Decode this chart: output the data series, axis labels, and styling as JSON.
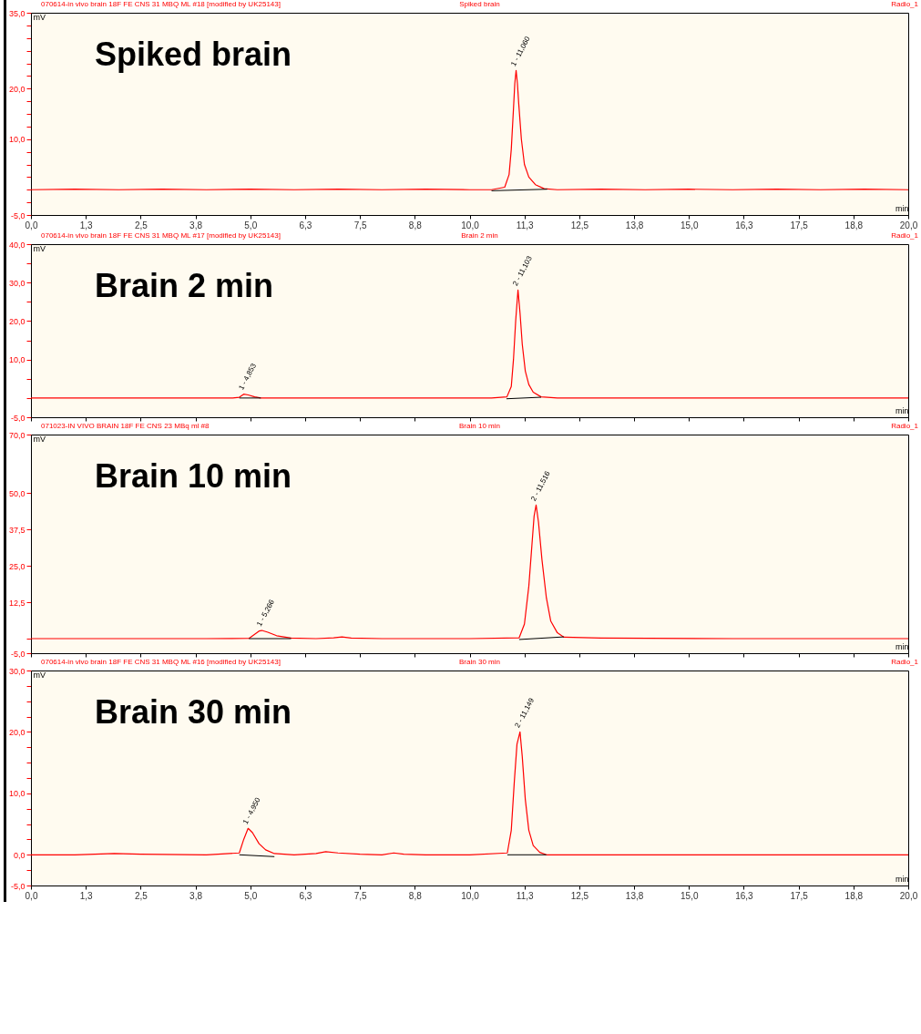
{
  "chart_data": [
    {
      "type": "line",
      "title": "Spiked brain",
      "xlabel": "min",
      "ylabel": "mV",
      "xlim": [
        0,
        20
      ],
      "ylim": [
        -5,
        35
      ],
      "grid": false,
      "xticks": [
        {
          "value": 0,
          "label": "0,0"
        },
        {
          "value": 1.25,
          "label": "1,3"
        },
        {
          "value": 2.5,
          "label": "2,5"
        },
        {
          "value": 3.75,
          "label": "3,8"
        },
        {
          "value": 5,
          "label": "5,0"
        },
        {
          "value": 6.25,
          "label": "6,3"
        },
        {
          "value": 7.5,
          "label": "7,5"
        },
        {
          "value": 8.75,
          "label": "8,8"
        },
        {
          "value": 10,
          "label": "10,0"
        },
        {
          "value": 11.25,
          "label": "11,3"
        },
        {
          "value": 12.5,
          "label": "12,5"
        },
        {
          "value": 13.75,
          "label": "13,8"
        },
        {
          "value": 15,
          "label": "15,0"
        },
        {
          "value": 16.25,
          "label": "16,3"
        },
        {
          "value": 17.5,
          "label": "17,5"
        },
        {
          "value": 18.75,
          "label": "18,8"
        },
        {
          "value": 20,
          "label": "20,0"
        }
      ],
      "yticks": [
        {
          "value": -5,
          "label": "-5,0"
        },
        {
          "value": -2.5,
          "label": null
        },
        {
          "value": 0,
          "label": null
        },
        {
          "value": 2.5,
          "label": null
        },
        {
          "value": 5,
          "label": null
        },
        {
          "value": 7.5,
          "label": null
        },
        {
          "value": 10,
          "label": "10,0"
        },
        {
          "value": 12.5,
          "label": null
        },
        {
          "value": 15,
          "label": null
        },
        {
          "value": 17.5,
          "label": null
        },
        {
          "value": 20,
          "label": "20,0"
        },
        {
          "value": 22.5,
          "label": null
        },
        {
          "value": 25,
          "label": null
        },
        {
          "value": 27.5,
          "label": null
        },
        {
          "value": 30,
          "label": null
        },
        {
          "value": 32.5,
          "label": null
        },
        {
          "value": 35,
          "label": "35,0"
        }
      ],
      "series": [
        {
          "color": "#ff0000",
          "x": [
            0,
            1,
            2,
            3,
            4,
            5,
            6,
            7,
            8,
            9,
            10,
            10.5,
            10.8,
            10.9,
            10.95,
            11.0,
            11.03,
            11.06,
            11.09,
            11.12,
            11.18,
            11.25,
            11.35,
            11.5,
            11.7,
            12,
            13,
            14,
            15,
            16,
            17,
            18,
            19,
            20
          ],
          "values": [
            0,
            0.1,
            0,
            0.1,
            0,
            0.1,
            0,
            0.1,
            0,
            0.1,
            0,
            0,
            0.5,
            3,
            8,
            16,
            21,
            23.6,
            21,
            17,
            10,
            5,
            2.5,
            1,
            0.2,
            0,
            0.1,
            0,
            0.1,
            0,
            0.1,
            0,
            0.1,
            0
          ]
        },
        {
          "color": "#000000",
          "x": [
            10.5,
            11.77
          ],
          "values": [
            -0.2,
            0.1
          ]
        }
      ],
      "annotations": [
        "070614-in vivo brain 18F FE CNS 31 MBQ ML #18 [modified by UK25143]",
        "Spiked brain",
        "Radio_1",
        {
          "text": "1 - 11,060",
          "x": 11.06,
          "y": 23.6
        }
      ]
    },
    {
      "type": "line",
      "title": "Brain 2 min",
      "xlabel": "min",
      "ylabel": "mV",
      "xlim": [
        0,
        20
      ],
      "ylim": [
        -5,
        40
      ],
      "grid": false,
      "tick_labels": "y",
      "xticks": [
        {
          "value": 0,
          "label": null
        },
        {
          "value": 1.25,
          "label": null
        },
        {
          "value": 2.5,
          "label": null
        },
        {
          "value": 3.75,
          "label": null
        },
        {
          "value": 5,
          "label": null
        },
        {
          "value": 6.25,
          "label": null
        },
        {
          "value": 7.5,
          "label": null
        },
        {
          "value": 8.75,
          "label": null
        },
        {
          "value": 10,
          "label": null
        },
        {
          "value": 11.25,
          "label": null
        },
        {
          "value": 12.5,
          "label": null
        },
        {
          "value": 13.75,
          "label": null
        },
        {
          "value": 15,
          "label": null
        },
        {
          "value": 16.25,
          "label": null
        },
        {
          "value": 17.5,
          "label": null
        },
        {
          "value": 18.75,
          "label": null
        },
        {
          "value": 20,
          "label": null
        }
      ],
      "yticks": [
        {
          "value": -5,
          "label": "-5,0"
        },
        {
          "value": 0,
          "label": null
        },
        {
          "value": 5,
          "label": null
        },
        {
          "value": 10,
          "label": "10,0"
        },
        {
          "value": 15,
          "label": null
        },
        {
          "value": 20,
          "label": "20,0"
        },
        {
          "value": 25,
          "label": null
        },
        {
          "value": 30,
          "label": "30,0"
        },
        {
          "value": 35,
          "label": null
        },
        {
          "value": 40,
          "label": "40,0"
        }
      ],
      "series": [
        {
          "color": "#ff0000",
          "x": [
            0,
            2,
            4,
            4.6,
            4.75,
            4.85,
            4.95,
            5.1,
            5.24,
            5.5,
            7,
            9,
            10.5,
            10.85,
            10.95,
            11.0,
            11.05,
            11.103,
            11.15,
            11.2,
            11.27,
            11.35,
            11.45,
            11.63,
            12,
            14,
            16,
            18,
            20
          ],
          "values": [
            0,
            0,
            0,
            0,
            0.2,
            1.0,
            0.8,
            0.3,
            0,
            0,
            0,
            0,
            0,
            0.3,
            3,
            10,
            20,
            28.1,
            22,
            14,
            7,
            3.5,
            1.5,
            0.3,
            0,
            0,
            0,
            0,
            0
          ]
        },
        {
          "color": "#000000",
          "x": [
            4.75,
            5.24
          ],
          "values": [
            0,
            0
          ]
        },
        {
          "color": "#000000",
          "x": [
            10.84,
            11.63
          ],
          "values": [
            -0.2,
            0.2
          ]
        }
      ],
      "annotations": [
        "070614-in vivo brain 18F FE CNS 31 MBQ ML #17 [modified by UK25143]",
        "Brain 2 min",
        "Radio_1",
        {
          "text": "1 - 4,853",
          "x": 4.853,
          "y": 1.0
        },
        {
          "text": "2 - 11,103",
          "x": 11.103,
          "y": 28.1
        }
      ]
    },
    {
      "type": "line",
      "title": "Brain 10 min",
      "xlabel": "min",
      "ylabel": "mV",
      "xlim": [
        0,
        20
      ],
      "ylim": [
        -5,
        70
      ],
      "grid": false,
      "tick_labels": "y",
      "xticks": [
        {
          "value": 0,
          "label": null
        },
        {
          "value": 1.25,
          "label": null
        },
        {
          "value": 2.5,
          "label": null
        },
        {
          "value": 3.75,
          "label": null
        },
        {
          "value": 5,
          "label": null
        },
        {
          "value": 6.25,
          "label": null
        },
        {
          "value": 7.5,
          "label": null
        },
        {
          "value": 8.75,
          "label": null
        },
        {
          "value": 10,
          "label": null
        },
        {
          "value": 11.25,
          "label": null
        },
        {
          "value": 12.5,
          "label": null
        },
        {
          "value": 13.75,
          "label": null
        },
        {
          "value": 15,
          "label": null
        },
        {
          "value": 16.25,
          "label": null
        },
        {
          "value": 17.5,
          "label": null
        },
        {
          "value": 18.75,
          "label": null
        },
        {
          "value": 20,
          "label": null
        }
      ],
      "yticks": [
        {
          "value": -5,
          "label": "-5,0"
        },
        {
          "value": 0,
          "label": null
        },
        {
          "value": 12.5,
          "label": "12,5"
        },
        {
          "value": 25,
          "label": "25,0"
        },
        {
          "value": 37.5,
          "label": "37,5"
        },
        {
          "value": 50,
          "label": "50,0"
        },
        {
          "value": 70,
          "label": "70,0"
        }
      ],
      "series": [
        {
          "color": "#ff0000",
          "x": [
            0,
            2,
            4,
            4.97,
            5.1,
            5.2,
            5.266,
            5.4,
            5.6,
            5.93,
            6.5,
            6.9,
            7.09,
            7.3,
            8,
            10,
            11.13,
            11.25,
            11.35,
            11.42,
            11.47,
            11.516,
            11.57,
            11.65,
            11.75,
            11.85,
            12.0,
            12.15,
            13,
            16,
            20
          ],
          "values": [
            0,
            0,
            0,
            0.1,
            1.5,
            2.6,
            2.8,
            2.2,
            1.0,
            0.2,
            0,
            0.3,
            0.6,
            0.2,
            0,
            0,
            0.3,
            5,
            18,
            32,
            42,
            45.8,
            40,
            27,
            14,
            6,
            2,
            0.5,
            0.2,
            0,
            0
          ]
        },
        {
          "color": "#000000",
          "x": [
            4.97,
            5.93
          ],
          "values": [
            0,
            0
          ]
        },
        {
          "color": "#000000",
          "x": [
            11.13,
            12.15
          ],
          "values": [
            -0.3,
            0.6
          ]
        }
      ],
      "annotations": [
        "071023-IN VIVO BRAIN 18F FE CNS 23 MBq ml #8",
        "Brain 10 min",
        "Radio_1",
        {
          "text": "1 - 5,266",
          "x": 5.266,
          "y": 2.8
        },
        {
          "text": "2 - 11,516",
          "x": 11.516,
          "y": 45.8
        }
      ]
    },
    {
      "type": "line",
      "title": "Brain 30 min",
      "xlabel": "min",
      "ylabel": "mV",
      "xlim": [
        0,
        20
      ],
      "ylim": [
        -5,
        30
      ],
      "grid": false,
      "xticks": [
        {
          "value": 0,
          "label": "0,0"
        },
        {
          "value": 1.25,
          "label": "1,3"
        },
        {
          "value": 2.5,
          "label": "2,5"
        },
        {
          "value": 3.75,
          "label": "3,8"
        },
        {
          "value": 5,
          "label": "5,0"
        },
        {
          "value": 6.25,
          "label": "6,3"
        },
        {
          "value": 7.5,
          "label": "7,5"
        },
        {
          "value": 8.75,
          "label": "8,8"
        },
        {
          "value": 10,
          "label": "10,0"
        },
        {
          "value": 11.25,
          "label": "11,3"
        },
        {
          "value": 12.5,
          "label": "12,5"
        },
        {
          "value": 13.75,
          "label": "13,8"
        },
        {
          "value": 15,
          "label": "15,0"
        },
        {
          "value": 16.25,
          "label": "16,3"
        },
        {
          "value": 17.5,
          "label": "17,5"
        },
        {
          "value": 18.75,
          "label": "18,8"
        },
        {
          "value": 20,
          "label": "20,0"
        }
      ],
      "yticks": [
        {
          "value": -5,
          "label": "-5,0"
        },
        {
          "value": -2.5,
          "label": null
        },
        {
          "value": 0,
          "label": "0,0"
        },
        {
          "value": 2.5,
          "label": null
        },
        {
          "value": 5,
          "label": null
        },
        {
          "value": 7.5,
          "label": null
        },
        {
          "value": 10,
          "label": "10,0"
        },
        {
          "value": 12.5,
          "label": null
        },
        {
          "value": 15,
          "label": null
        },
        {
          "value": 17.5,
          "label": null
        },
        {
          "value": 20,
          "label": "20,0"
        },
        {
          "value": 22.5,
          "label": null
        },
        {
          "value": 25,
          "label": null
        },
        {
          "value": 27.5,
          "label": null
        },
        {
          "value": 30,
          "label": "30,0"
        }
      ],
      "series": [
        {
          "color": "#ff0000",
          "x": [
            0,
            1,
            1.9,
            2.5,
            4,
            4.75,
            4.85,
            4.95,
            5.05,
            5.2,
            5.35,
            5.55,
            6,
            6.5,
            6.72,
            7,
            7.5,
            8.0,
            8.27,
            8.5,
            9,
            10,
            10.86,
            10.95,
            11.02,
            11.08,
            11.149,
            11.2,
            11.27,
            11.35,
            11.45,
            11.6,
            11.75,
            13,
            16,
            20
          ],
          "values": [
            0,
            0,
            0.2,
            0.1,
            0,
            0.3,
            2.5,
            4.3,
            3.6,
            1.8,
            0.8,
            0.2,
            0,
            0.2,
            0.5,
            0.3,
            0.1,
            0,
            0.3,
            0.1,
            0,
            0,
            0.3,
            4,
            12,
            18,
            20,
            16,
            9,
            4,
            1.5,
            0.4,
            0,
            0,
            0,
            0
          ]
        },
        {
          "color": "#000000",
          "x": [
            4.75,
            5.55
          ],
          "values": [
            0,
            -0.3
          ]
        },
        {
          "color": "#000000",
          "x": [
            10.86,
            11.75
          ],
          "values": [
            0,
            0
          ]
        }
      ],
      "annotations": [
        "070614-in vivo brain 18F FE CNS 31 MBQ ML #16 [modified by UK25143]",
        "Brain 30 min",
        "Radio_1",
        {
          "text": "1 - 4,950",
          "x": 4.95,
          "y": 4.3
        },
        {
          "text": "2 - 11,149",
          "x": 11.149,
          "y": 20
        }
      ]
    }
  ]
}
